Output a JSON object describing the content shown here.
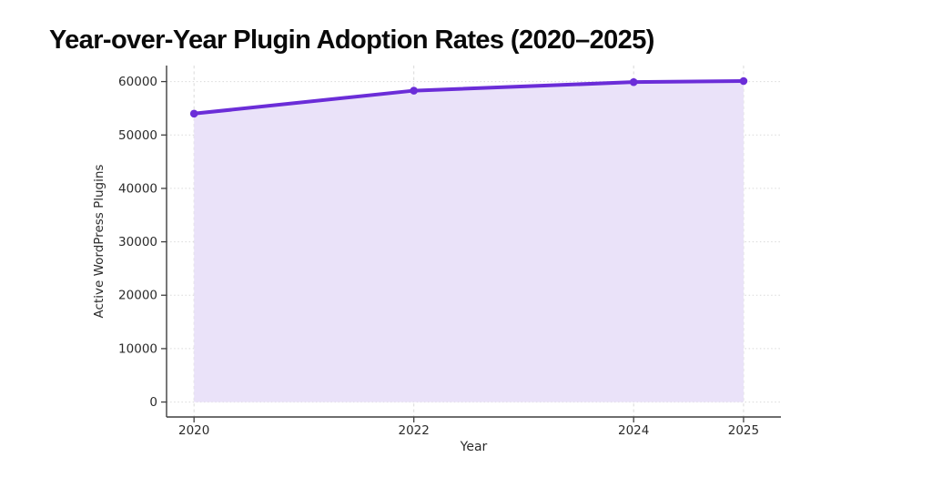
{
  "title": "Year-over-Year Plugin Adoption Rates (2020–2025)",
  "chart_data": {
    "type": "area",
    "title": "Year-over-Year Plugin Adoption Rates (2020–2025)",
    "x": [
      2020,
      2022,
      2024,
      2025
    ],
    "series": [
      {
        "name": "Active WordPress Plugins",
        "values": [
          54000,
          58300,
          59900,
          60100
        ]
      }
    ],
    "xlabel": "Year",
    "ylabel": "Active WordPress Plugins",
    "xticks": [
      2020,
      2022,
      2024,
      2025
    ],
    "xtick_labels": [
      "2020",
      "2022",
      "2024",
      "2025"
    ],
    "yticks": [
      0,
      10000,
      20000,
      30000,
      40000,
      50000,
      60000
    ],
    "ytick_labels": [
      "0",
      "10000",
      "20000",
      "30000",
      "40000",
      "50000",
      "60000"
    ],
    "xlim": [
      2019.75,
      2025.34
    ],
    "ylim": [
      -2800,
      63000
    ],
    "grid": true,
    "legend": false,
    "marker": "circle",
    "colors": {
      "line": "#6b2dd8",
      "marker": "#6b2dd8",
      "fill": "#eae2f9",
      "grid": "#d9d9d9",
      "spine": "#3f3f3f",
      "tick_text": "#2b2b2b",
      "title_text": "#0a0a0a"
    }
  }
}
